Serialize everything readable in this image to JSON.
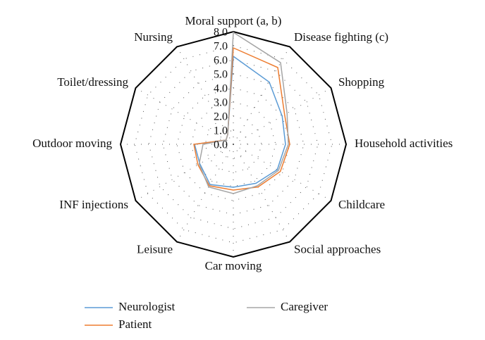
{
  "chart_data": {
    "type": "radar",
    "categories": [
      "Moral support (a, b)",
      "Disease fighting (c)",
      "Shopping",
      "Household activities",
      "Childcare",
      "Social approaches",
      "Car moving",
      "Leisure",
      "INF injections",
      "Outdoor moving",
      "Toilet/dressing",
      "Nursing"
    ],
    "rlim": [
      0,
      8
    ],
    "rticks": [
      {
        "value": 0,
        "label": "0.0"
      },
      {
        "value": 1,
        "label": "1.0"
      },
      {
        "value": 2,
        "label": "2.0"
      },
      {
        "value": 3,
        "label": "3.0"
      },
      {
        "value": 4,
        "label": "4.0"
      },
      {
        "value": 5,
        "label": "5.0"
      },
      {
        "value": 6,
        "label": "6.0"
      },
      {
        "value": 7,
        "label": "7.0"
      },
      {
        "value": 8,
        "label": "8.0"
      }
    ],
    "series": [
      {
        "name": "Neurologist",
        "color": "#5b9bd5",
        "values": [
          6.25,
          5.1,
          4.0,
          3.7,
          3.6,
          3.2,
          3.05,
          3.3,
          2.75,
          2.75,
          0.6,
          0.8
        ]
      },
      {
        "name": "Patient",
        "color": "#ed7d31",
        "values": [
          6.85,
          6.3,
          4.2,
          4.0,
          3.85,
          3.5,
          3.25,
          3.4,
          2.9,
          2.8,
          0.6,
          0.8
        ]
      },
      {
        "name": "Caregiver",
        "color": "#a5a5a5",
        "values": [
          7.95,
          6.7,
          4.4,
          3.9,
          3.7,
          3.4,
          3.5,
          3.5,
          2.8,
          2.15,
          0.6,
          0.8
        ]
      }
    ]
  }
}
